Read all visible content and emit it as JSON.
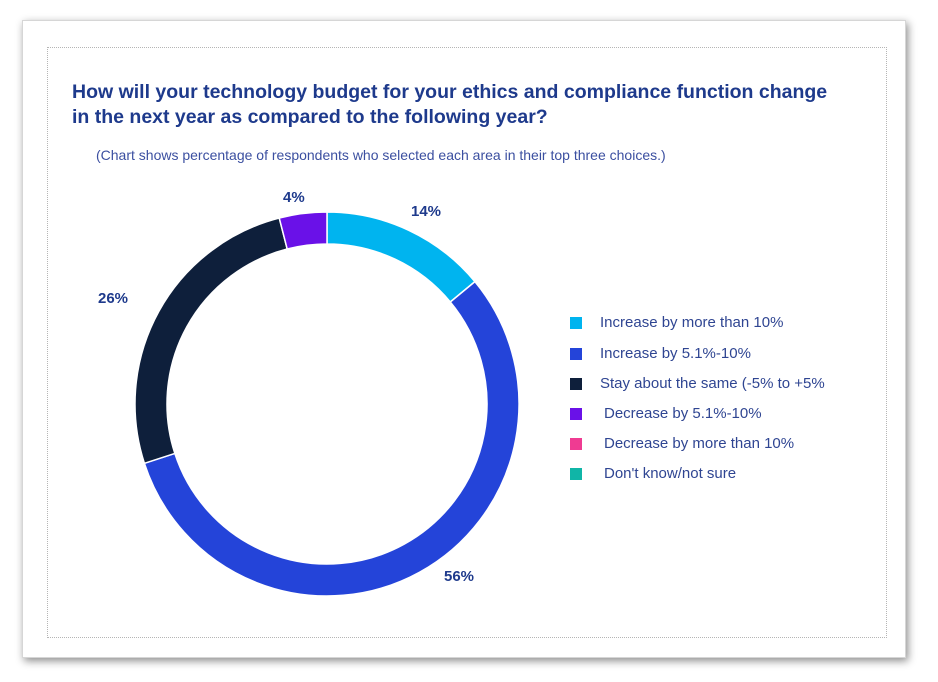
{
  "chart_data": {
    "type": "pie",
    "subtype": "donut",
    "title": "How will your technology budget for your ethics and compliance function change in the next year as compared to the following year?",
    "subtitle": "(Chart shows percentage of respondents who selected each area in their top three choices.)",
    "legend_position": "right",
    "series": [
      {
        "name": "Increase by more than 10%",
        "value": 14,
        "label": "14%",
        "color": "#00b4ef"
      },
      {
        "name": "Increase by 5.1%-10%",
        "value": 56,
        "label": "56%",
        "color": "#2444d9"
      },
      {
        "name": "Stay about the same (-5% to +5%",
        "value": 26,
        "label": "26%",
        "color": "#0e1f3b"
      },
      {
        "name": "Decrease by 5.1%-10%",
        "value": 4,
        "label": "4%",
        "color": "#6a11e8"
      },
      {
        "name": "Decrease by more than 10%",
        "value": 0,
        "label": "",
        "color": "#ef3b92"
      },
      {
        "name": "Don't know/not sure",
        "value": 0,
        "label": "",
        "color": "#10b5a7"
      }
    ]
  }
}
